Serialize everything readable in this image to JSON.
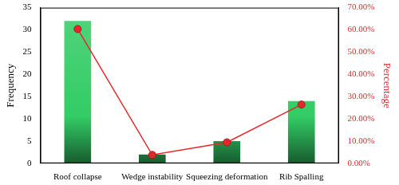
{
  "chart_data": {
    "type": "bar",
    "categories": [
      "Roof collapse",
      "Wedge instability",
      "Squeezing deformation",
      "Rib Spalling"
    ],
    "y_label": "Frequency",
    "y2_label": "Percentage",
    "ylim": [
      0,
      35
    ],
    "yticks": [
      0,
      5,
      10,
      15,
      20,
      25,
      30,
      35
    ],
    "y2lim": [
      0,
      70
    ],
    "y2ticks": [
      {
        "value": 0,
        "label": "0.00%"
      },
      {
        "value": 10,
        "label": "10.00%"
      },
      {
        "value": 20,
        "label": "20.00%"
      },
      {
        "value": 30,
        "label": "30.00%"
      },
      {
        "value": 40,
        "label": "40.00%"
      },
      {
        "value": 50,
        "label": "50.00%"
      },
      {
        "value": 60,
        "label": "60.00%"
      },
      {
        "value": 70,
        "label": "70.00%"
      }
    ],
    "grid": false,
    "series": [
      {
        "type": "bar",
        "color": "#33cc66",
        "values": [
          32,
          2,
          5,
          14
        ]
      },
      {
        "type": "line",
        "axis": "y2",
        "color": "#e8262a",
        "marker": "circle",
        "values": [
          60.38,
          3.77,
          9.43,
          26.42
        ]
      }
    ]
  }
}
